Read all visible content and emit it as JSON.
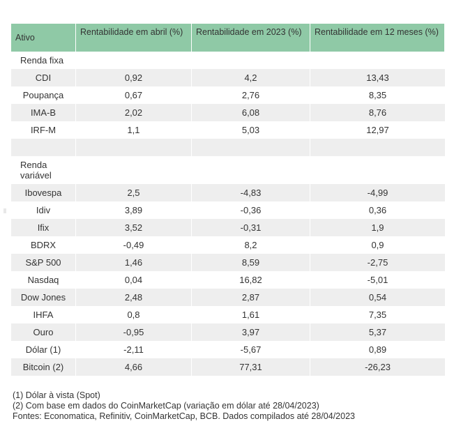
{
  "header": {
    "col1": "Ativo",
    "col2": "Rentabilidade em abril (%)",
    "col3": "Rentabilidade em 2023 (%)",
    "col4": "Rentabilidade em 12 meses (%)"
  },
  "sections": {
    "fixed": "Renda fixa",
    "variable": "Renda variável"
  },
  "fixed_rows": [
    {
      "asset": "CDI",
      "april": "0,92",
      "ytd": "4,2",
      "m12": "13,43"
    },
    {
      "asset": "Poupança",
      "april": "0,67",
      "ytd": "2,76",
      "m12": "8,35"
    },
    {
      "asset": "IMA-B",
      "april": "2,02",
      "ytd": "6,08",
      "m12": "8,76"
    },
    {
      "asset": "IRF-M",
      "april": "1,1",
      "ytd": "5,03",
      "m12": "12,97"
    }
  ],
  "variable_rows": [
    {
      "asset": "Ibovespa",
      "april": "2,5",
      "ytd": "-4,83",
      "m12": "-4,99"
    },
    {
      "asset": "Idiv",
      "april": "3,89",
      "ytd": "-0,36",
      "m12": "0,36"
    },
    {
      "asset": "Ifix",
      "april": "3,52",
      "ytd": "-0,31",
      "m12": "1,9"
    },
    {
      "asset": "BDRX",
      "april": "-0,49",
      "ytd": "8,2",
      "m12": "0,9"
    },
    {
      "asset": "S&P 500",
      "april": "1,46",
      "ytd": "8,59",
      "m12": "-2,75"
    },
    {
      "asset": "Nasdaq",
      "april": "0,04",
      "ytd": "16,82",
      "m12": "-5,01"
    },
    {
      "asset": "Dow Jones",
      "april": "2,48",
      "ytd": "2,87",
      "m12": "0,54"
    },
    {
      "asset": "IHFA",
      "april": "0,8",
      "ytd": "1,61",
      "m12": "7,35"
    },
    {
      "asset": "Ouro",
      "april": "-0,95",
      "ytd": "3,97",
      "m12": "5,37"
    },
    {
      "asset": "Dólar (1)",
      "april": "-2,11",
      "ytd": "-5,67",
      "m12": "0,89"
    },
    {
      "asset": "Bitcoin (2)",
      "april": "4,66",
      "ytd": "77,31",
      "m12": "-26,23"
    }
  ],
  "notes": {
    "note1": "(1) Dólar à vista (Spot)",
    "note2": "(2) Com base em dados do CoinMarketCap (variação em dólar até 28/04/2023)",
    "sources": "Fontes: Economatica, Refinitiv, CoinMarketCap, BCB. Dados compilados até 28/04/2023"
  }
}
